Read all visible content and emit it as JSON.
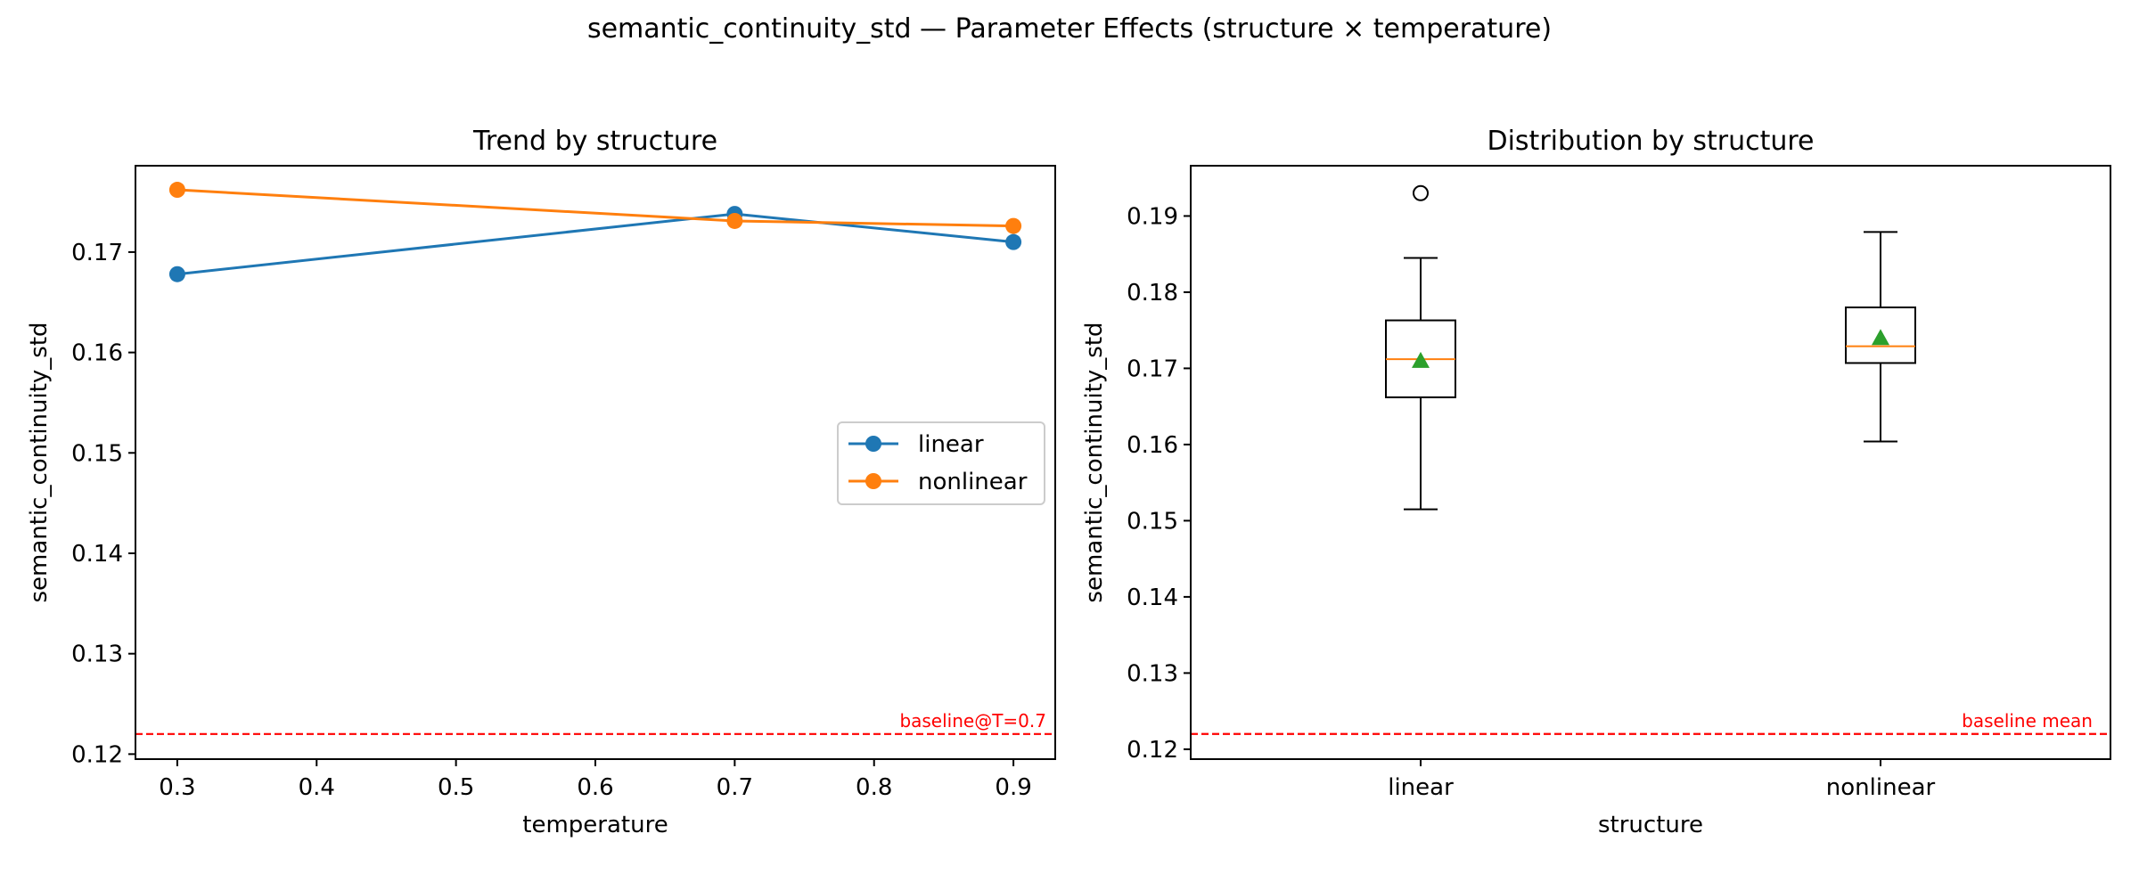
{
  "figure": {
    "suptitle": "semantic_continuity_std — Parameter Effects (structure × temperature)"
  },
  "chart_data": [
    {
      "type": "line",
      "title": "Trend by structure",
      "xlabel": "temperature",
      "ylabel": "semantic_continuity_std",
      "xlim": [
        0.27,
        0.93
      ],
      "ylim": [
        0.1195,
        0.1786
      ],
      "xticks": [
        "0.3",
        "0.4",
        "0.5",
        "0.6",
        "0.7",
        "0.8",
        "0.9"
      ],
      "yticks": [
        "0.12",
        "0.13",
        "0.14",
        "0.15",
        "0.16",
        "0.17"
      ],
      "x": [
        0.3,
        0.7,
        0.9
      ],
      "series": [
        {
          "name": "linear",
          "color": "#1f77b4",
          "values": [
            0.1678,
            0.1738,
            0.171
          ]
        },
        {
          "name": "nonlinear",
          "color": "#ff7f0e",
          "values": [
            0.1762,
            0.1731,
            0.1726
          ]
        }
      ],
      "baseline": {
        "value": 0.122,
        "label": "baseline@T=0.7",
        "color": "#ff0000"
      },
      "legend": "center-right",
      "grid": false
    },
    {
      "type": "box",
      "title": "Distribution by structure",
      "xlabel": "structure",
      "ylabel": "semantic_continuity_std",
      "ylim": [
        0.1187,
        0.1966
      ],
      "yticks": [
        "0.12",
        "0.13",
        "0.14",
        "0.15",
        "0.16",
        "0.17",
        "0.18",
        "0.19"
      ],
      "categories": [
        "linear",
        "nonlinear"
      ],
      "boxes": [
        {
          "whisker_low": 0.1515,
          "q1": 0.1662,
          "median": 0.1712,
          "q3": 0.1763,
          "whisker_high": 0.1845,
          "mean": 0.171,
          "outliers": [
            0.193
          ]
        },
        {
          "whisker_low": 0.1604,
          "q1": 0.1707,
          "median": 0.1729,
          "q3": 0.178,
          "whisker_high": 0.1879,
          "mean": 0.174,
          "outliers": []
        }
      ],
      "baseline": {
        "value": 0.122,
        "label": "baseline mean",
        "color": "#ff0000"
      },
      "median_color": "#ff7f0e",
      "mean_color": "#2ca02c",
      "grid": false
    }
  ]
}
